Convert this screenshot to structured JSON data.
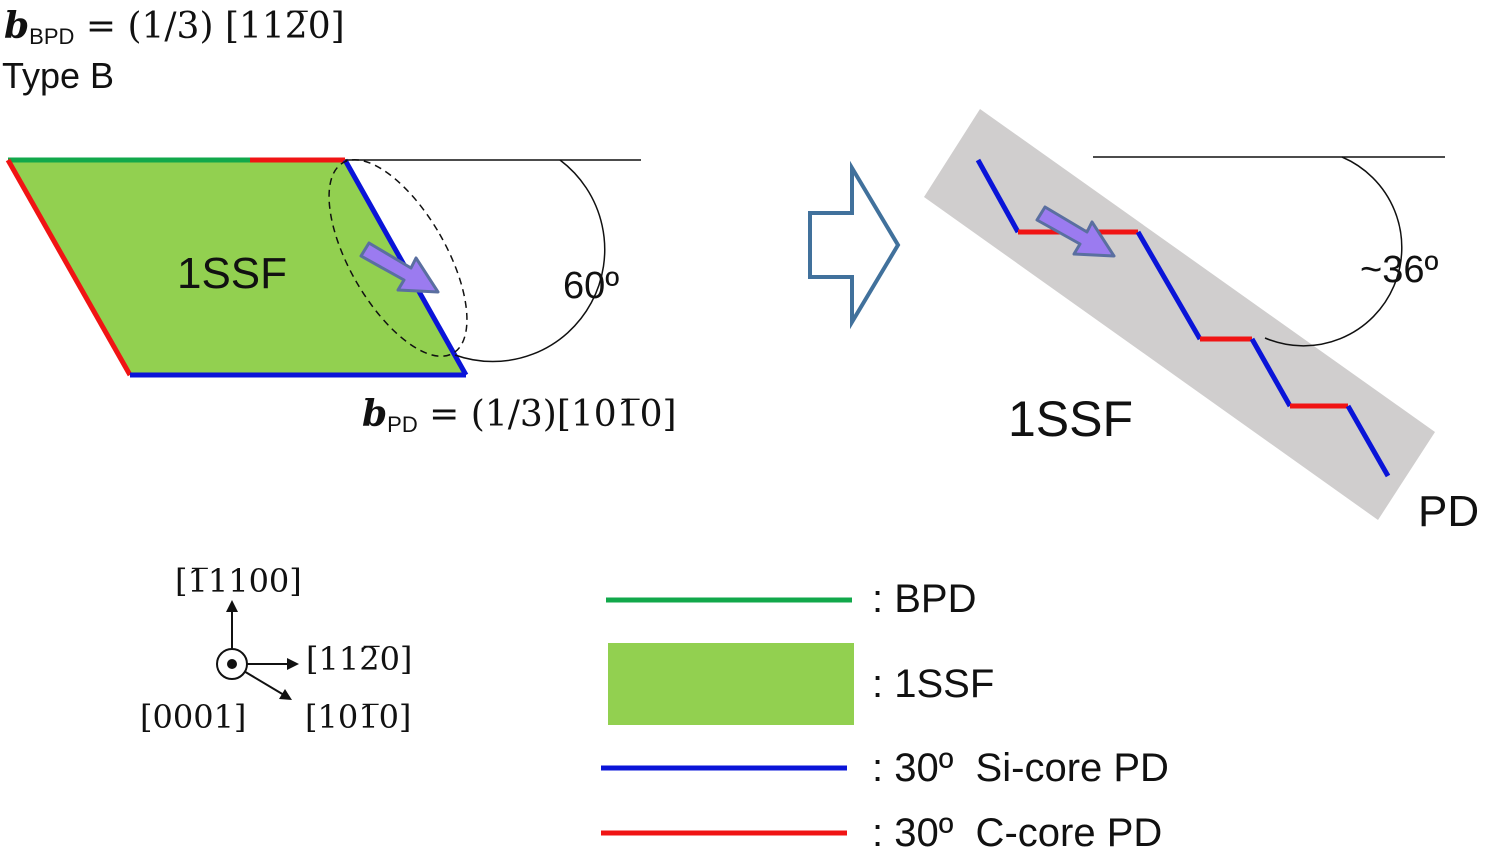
{
  "header": {
    "b_symbol": "b",
    "bpd_sub": "BPD",
    "bpd_vector": " = (1/3) [11ǡ20]",
    "type_label": "Type B"
  },
  "left_panel": {
    "ssf_label": "1SSF",
    "angle_label": "60º",
    "pd_b_symbol": "b",
    "pd_sub": "PD",
    "pd_vector": " = (1/3)[10ǡ10]"
  },
  "right_panel": {
    "angle_label": "~36º",
    "ssf_label": "1SSF",
    "pd_label": "PD"
  },
  "axes": {
    "up": "[¯1100]",
    "right": "[11¯20]",
    "diag": "[10¯10]",
    "out": "[0001]"
  },
  "axes_display": {
    "up": "[1̅1100]",
    "right": "[112̅0]",
    "diag": "[101̅0]",
    "out": "[0001]"
  },
  "legend": [
    {
      "label": ": BPD",
      "color": "#12a84b",
      "kind": "line"
    },
    {
      "label": ": 1SSF",
      "color": "#92d050",
      "kind": "box"
    },
    {
      "label": ": 30º  Si-core PD",
      "color": "#0a14d8",
      "kind": "line"
    },
    {
      "label": ": 30º  C-core PD",
      "color": "#f01414",
      "kind": "line"
    }
  ],
  "colors": {
    "bpd": "#12a84b",
    "ssf": "#92d050",
    "si_core": "#0a14d8",
    "c_core": "#f01414",
    "arrow_fill": "#9b7bf0",
    "arrow_stroke": "#5a6fa0",
    "band": "#d0cece",
    "hollow_arrow": "#41719c"
  }
}
